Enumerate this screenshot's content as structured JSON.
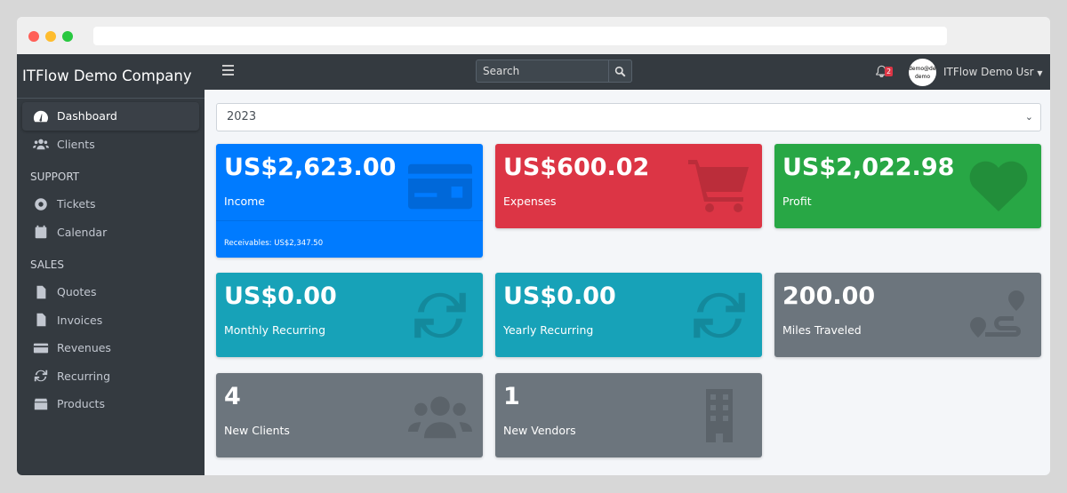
{
  "sidebar": {
    "brand": "ITFlow Demo Company",
    "items": [
      {
        "label": "Dashboard",
        "icon": "tachometer-icon"
      },
      {
        "label": "Clients",
        "icon": "users-icon"
      }
    ],
    "support_header": "SUPPORT",
    "support": [
      {
        "label": "Tickets",
        "icon": "life-ring-icon"
      },
      {
        "label": "Calendar",
        "icon": "calendar-icon"
      }
    ],
    "sales_header": "SALES",
    "sales": [
      {
        "label": "Quotes",
        "icon": "file-icon"
      },
      {
        "label": "Invoices",
        "icon": "invoice-icon"
      },
      {
        "label": "Revenues",
        "icon": "credit-card-icon"
      },
      {
        "label": "Recurring",
        "icon": "sync-icon"
      },
      {
        "label": "Products",
        "icon": "box-icon"
      }
    ]
  },
  "topnav": {
    "search_placeholder": "Search",
    "notifications": "2",
    "avatar_text": "demo@demo demo",
    "user": "ITFlow Demo Usr"
  },
  "year_select": "2023",
  "cards": [
    {
      "value": "US$2,623.00",
      "label": "Income",
      "sub": "Receivables: US$2,347.50",
      "color": "#007bff"
    },
    {
      "value": "US$600.02",
      "label": "Expenses",
      "color": "#dc3545"
    },
    {
      "value": "US$2,022.98",
      "label": "Profit",
      "color": "#28a745"
    },
    {
      "value": "US$0.00",
      "label": "Monthly Recurring",
      "color": "#17a2b8"
    },
    {
      "value": "US$0.00",
      "label": "Yearly Recurring",
      "color": "#17a2b8"
    },
    {
      "value": "200.00",
      "label": "Miles Traveled",
      "color": "#6c757d"
    },
    {
      "value": "4",
      "label": "New Clients",
      "color": "#6c757d"
    },
    {
      "value": "1",
      "label": "New Vendors",
      "color": "#6c757d"
    }
  ]
}
